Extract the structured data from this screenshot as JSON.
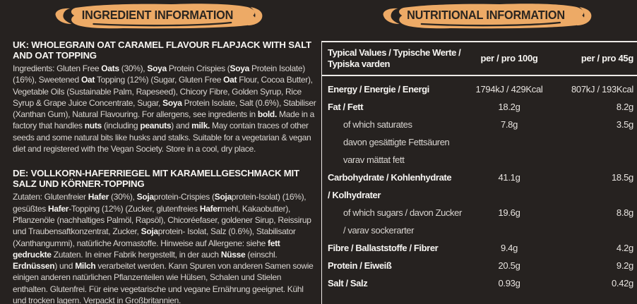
{
  "colors": {
    "background": "#262220",
    "accent_brush": "#edaa66",
    "brush_text": "#2b2520",
    "text": "#d9d5d1",
    "text_bright": "#f7f5f2",
    "rule": "#edeae7"
  },
  "ingredient_panel": {
    "header": "INGREDIENT INFORMATION",
    "uk_title": "UK: WHOLEGRAIN OAT CARAMEL FLAVOUR FLAPJACK WITH SALT AND OAT TOPPING",
    "uk_body": "Ingredients: Gluten Free **Oats** (30%), **Soya** Protein Crispies (**Soya** Protein Isolate) (16%), Sweetened **Oat** Topping (12%) (Sugar, Gluten Free **Oat** Flour, Cocoa Butter), Vegetable Oils (Sustainable Palm, Rapeseed), Chicory Fibre, Golden Syrup, Rice Syrup & Grape Juice Concentrate, Sugar, **Soya** Protein Isolate, Salt (0.6%), Stabiliser (Xanthan Gum), Natural Flavouring.  For allergens, see ingredients in **bold.** Made in a factory that handles **nuts** (including **peanuts**) and **milk.** May contain traces of other seeds and some natural bits like husks and stalks. Suitable for a vegetarian & vegan diet and registered with the Vegan Society. Store in a cool, dry place.",
    "de_title": "DE: VOLLKORN-HAFERRIEGEL MIT KARAMELLGESCHMACK MIT SALZ UND KÖRNER-TOPPING",
    "de_body": "Zutaten: Glutenfreier **Hafer** (30%), **Soja**protein-Crispies (**Soja**protein-Isolat) (16%), gesüßtes **Hafer**-Topping (12%) (Zucker, glutenfreies **Hafer**mehl, Kakaobutter), Pflanzenöle (nachhaltiges Palmöl, Rapsöl), Chicoréefaser, goldener Sirup, Reissirup und Traubensaftkonzentrat, Zucker, **Soja**protein- Isolat, Salz (0.6%), Stabilisator (Xanthangummi), natürliche Aromastoffe. Hinweise auf Allergene: siehe **fett gedruckte** Zutaten. In einer Fabrik hergestellt, in der auch **Nüsse** (einschl. **Erdnüssen**) und **Milch** verarbeitet werden. Kann Spuren von anderen Samen sowie einigen anderen natürlichen Pflanzenteilen wie Hülsen, Schalen und Stielen enthalten. Glutenfrei. Für eine vegetarische und vegane Ernährung geeignet. Kühl und trocken lagern. Verpackt in Großbritannien."
  },
  "nutrition_panel": {
    "header": "NUTRITIONAL INFORMATION",
    "table": {
      "col1": "Typical Values / Typische Werte / Typiska varden",
      "col2": "per / pro 100g",
      "col3": "per / pro 45g",
      "rows": [
        {
          "label": "Energy / Energie / Energi",
          "bold": true,
          "indent": false,
          "per100": "1794kJ / 429Kcal",
          "per45": "807kJ / 193Kcal"
        },
        {
          "label": "Fat / Fett",
          "bold": true,
          "indent": false,
          "per100": "18.2g",
          "per45": "8.2g"
        },
        {
          "label": "of which saturates",
          "bold": false,
          "indent": true,
          "per100": "7.8g",
          "per45": "3.5g"
        },
        {
          "label": "davon gesättigte Fettsäuren",
          "bold": false,
          "indent": true,
          "per100": "",
          "per45": ""
        },
        {
          "label": "varav mättat fett",
          "bold": false,
          "indent": true,
          "per100": "",
          "per45": ""
        },
        {
          "label": "Carbohydrate / Kohlenhydrate",
          "bold": true,
          "indent": false,
          "per100": "41.1g",
          "per45": "18.5g"
        },
        {
          "label": "/ Kolhydrater",
          "bold": true,
          "indent": false,
          "per100": "",
          "per45": ""
        },
        {
          "label": "of which sugars / davon Zucker",
          "bold": false,
          "indent": true,
          "per100": "19.6g",
          "per45": "8.8g"
        },
        {
          "label": "/ varav sockerarter",
          "bold": false,
          "indent": true,
          "per100": "",
          "per45": ""
        },
        {
          "label": "Fibre / Ballaststoffe / Fibrer",
          "bold": true,
          "indent": false,
          "per100": "9.4g",
          "per45": "4.2g"
        },
        {
          "label": "Protein / Eiweiß",
          "bold": true,
          "indent": false,
          "per100": "20.5g",
          "per45": "9.2g"
        },
        {
          "label": "Salt / Salz",
          "bold": true,
          "indent": false,
          "per100": "0.93g",
          "per45": "0.42g"
        }
      ]
    }
  }
}
